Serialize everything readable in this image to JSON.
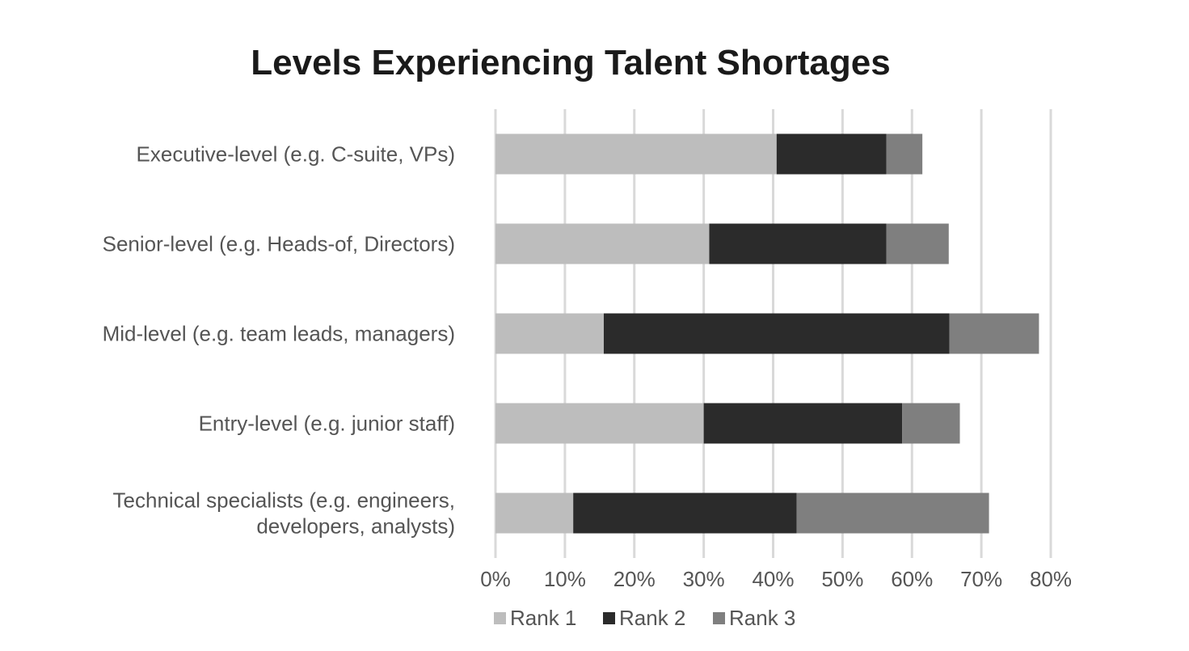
{
  "chart_data": {
    "type": "bar",
    "orientation": "horizontal",
    "stacked": true,
    "title": "Levels Experiencing Talent Shortages",
    "categories": [
      "Executive-level (e.g. C-suite, VPs)",
      "Senior-level (e.g. Heads-of, Directors)",
      "Mid-level (e.g. team leads, managers)",
      "Entry-level (e.g. junior staff)",
      "Technical specialists (e.g. engineers, developers, analysts)"
    ],
    "category_lines": [
      [
        "Executive-level (e.g. C-suite, VPs)"
      ],
      [
        "Senior-level (e.g. Heads-of, Directors)"
      ],
      [
        "Mid-level (e.g. team leads, managers)"
      ],
      [
        "Entry-level (e.g. junior staff)"
      ],
      [
        "Technical specialists (e.g. engineers,",
        "developers, analysts)"
      ]
    ],
    "series": [
      {
        "name": "Rank 1",
        "color": "#bdbdbd",
        "values": [
          40.5,
          30.8,
          15.6,
          30.0,
          11.2
        ]
      },
      {
        "name": "Rank 2",
        "color": "#2b2b2b",
        "values": [
          15.8,
          25.5,
          49.8,
          28.6,
          32.2
        ]
      },
      {
        "name": "Rank 3",
        "color": "#7f7f7f",
        "values": [
          5.2,
          9.0,
          12.9,
          8.3,
          27.7
        ]
      }
    ],
    "xlim": [
      0,
      80
    ],
    "xticks": [
      0,
      10,
      20,
      30,
      40,
      50,
      60,
      70,
      80
    ],
    "tick_labels": [
      "0%",
      "10%",
      "20%",
      "30%",
      "40%",
      "50%",
      "60%",
      "70%",
      "80%"
    ],
    "xlabel": "",
    "ylabel": "",
    "grid": "vertical",
    "legend": "bottom",
    "gridline_color": "#d9d9d9",
    "text_color": "#555555",
    "title_color": "#1a1a1a"
  }
}
